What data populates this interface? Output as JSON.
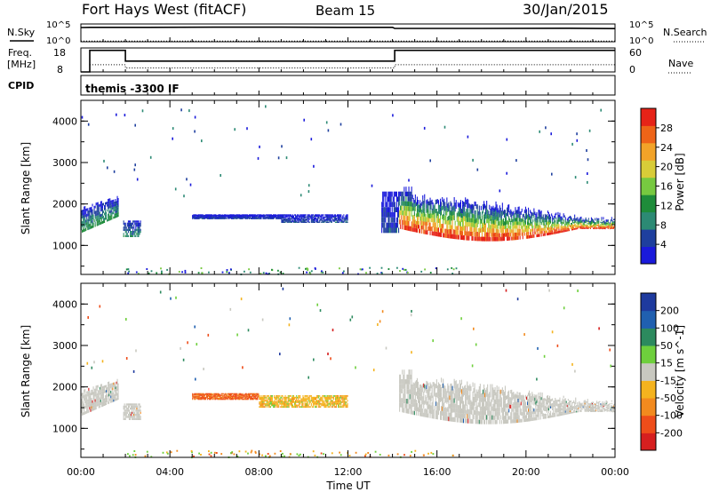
{
  "header": {
    "site": "Fort Hays West (fitACF)",
    "beam": "Beam 15",
    "date": "30/Jan/2015"
  },
  "strip": {
    "nsky_label": "N.Sky",
    "nsearch_label": "N.Search",
    "noise_tick_top": "10^5",
    "noise_tick_bottom": "10^0",
    "noise_tick_top_right": "10^5",
    "noise_tick_bottom_right": "10^0",
    "freq_label_1": "Freq.",
    "freq_label_2": "[MHz]",
    "freq_tick_top": "18",
    "freq_tick_bottom": "8",
    "nave_label": "Nave",
    "nave_tick_top": "60",
    "nave_tick_bottom": "0",
    "cpid_label": "CPID",
    "cpid_value": "themis -3300 IF"
  },
  "axes": {
    "xlabel": "Time UT",
    "ylabel": "Slant Range [km]",
    "xticks": [
      "00:00",
      "04:00",
      "08:00",
      "12:00",
      "16:00",
      "20:00",
      "00:00"
    ],
    "yticks": [
      "1000",
      "2000",
      "3000",
      "4000"
    ]
  },
  "chart_data": [
    {
      "type": "line",
      "name": "noise",
      "series": [
        {
          "name": "N.Sky",
          "x_hours": [
            0,
            0.4,
            3,
            6,
            9,
            12,
            14,
            14.1,
            18,
            22,
            24
          ],
          "log10_values": [
            4.0,
            4.05,
            4.05,
            4.1,
            4.1,
            4.05,
            4.05,
            3.75,
            3.75,
            3.8,
            3.7
          ]
        },
        {
          "name": "N.Search",
          "x_hours": [
            0,
            24
          ],
          "log10_values": [
            0.2,
            0.2
          ]
        }
      ],
      "ylim_log10": [
        0,
        5
      ]
    },
    {
      "type": "line",
      "name": "frequency",
      "series": [
        {
          "name": "Freq.",
          "x_hours": [
            0,
            0.4,
            0.4,
            2,
            2,
            14.1,
            14.1,
            24
          ],
          "values": [
            8,
            8,
            17,
            17,
            12.5,
            12.5,
            17,
            17
          ]
        },
        {
          "name": "Nave",
          "x_hours": [
            0,
            0.4,
            0.4,
            2,
            2,
            14.1,
            14.1,
            24
          ],
          "values": [
            0,
            0,
            18,
            18,
            10,
            10,
            18,
            18
          ]
        }
      ],
      "ylim": [
        8,
        18
      ],
      "ylim_right": [
        0,
        60
      ]
    },
    {
      "type": "heatmap",
      "name": "power",
      "x_range_hours": [
        0,
        24
      ],
      "ylim": [
        300,
        4500
      ],
      "colorbar": {
        "label": "Power [dB]",
        "ticks": [
          "28",
          "24",
          "20",
          "16",
          "12",
          "8",
          "4"
        ],
        "range": [
          0,
          32
        ]
      },
      "colors": [
        "#1a1adb",
        "#1e3f9e",
        "#2c8a74",
        "#1e8c3a",
        "#77c940",
        "#d8cc38",
        "#f2a328",
        "#ee6418",
        "#e62318"
      ],
      "regions": [
        {
          "t": [
            0,
            1.7
          ],
          "r": [
            1300,
            2100
          ],
          "level": 12
        },
        {
          "t": [
            1.9,
            2.7
          ],
          "r": [
            1200,
            1600
          ],
          "level": 10
        },
        {
          "t": [
            5.0,
            9.0
          ],
          "r": [
            1650,
            1750
          ],
          "level": 5
        },
        {
          "t": [
            9.0,
            12.0
          ],
          "r": [
            1550,
            1750
          ],
          "level": 6
        },
        {
          "t": [
            13.5,
            14.3
          ],
          "r": [
            1300,
            2300
          ],
          "level": 5
        },
        {
          "t": [
            14.3,
            24
          ],
          "r": [
            1100,
            2000
          ],
          "level": 20
        }
      ]
    },
    {
      "type": "heatmap",
      "name": "velocity",
      "x_range_hours": [
        0,
        24
      ],
      "ylim": [
        300,
        4500
      ],
      "colorbar": {
        "label": "Velocity [m s^-1]",
        "ticks": [
          "200",
          "100",
          "50",
          "15",
          "-15",
          "-50",
          "-100",
          "-200"
        ],
        "range": [
          -250,
          250
        ]
      },
      "colors": [
        "#d61f1f",
        "#ee4d1a",
        "#f28a1e",
        "#f4b31e",
        "#c8c8c0",
        "#6ecf3c",
        "#2c8a5e",
        "#2060b0",
        "#1e3a9e"
      ],
      "regions": [
        {
          "t": [
            0,
            1.7
          ],
          "r": [
            1300,
            2400
          ],
          "velocity": 0
        },
        {
          "t": [
            1.9,
            2.7
          ],
          "r": [
            1200,
            1600
          ],
          "velocity": 0
        },
        {
          "t": [
            5.0,
            8.0
          ],
          "r": [
            1700,
            1850
          ],
          "velocity": -150
        },
        {
          "t": [
            8.0,
            12.0
          ],
          "r": [
            1500,
            1800
          ],
          "velocity": -60
        },
        {
          "t": [
            14.3,
            24
          ],
          "r": [
            1100,
            2300
          ],
          "velocity": 0
        }
      ]
    }
  ]
}
